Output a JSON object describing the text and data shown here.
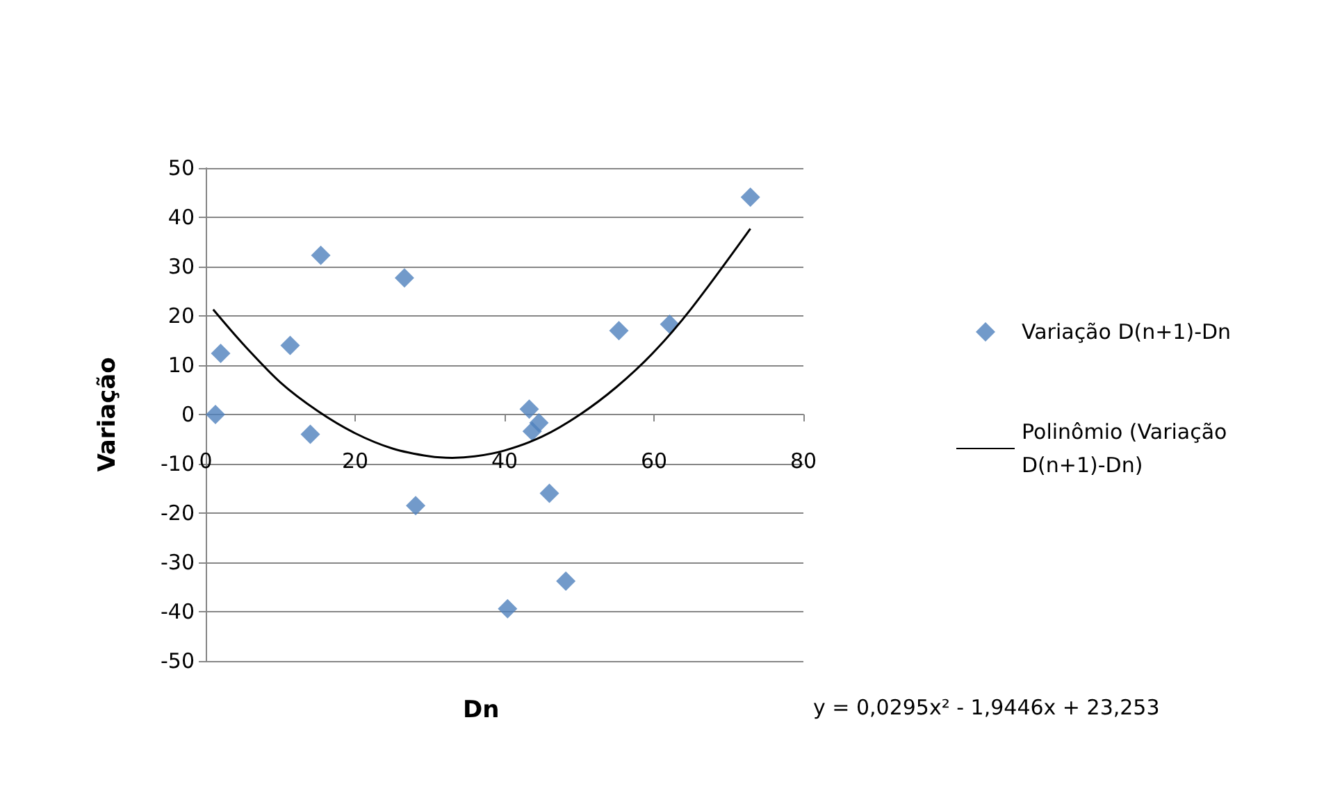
{
  "chart_data": {
    "type": "scatter",
    "xlabel": "Dn",
    "ylabel": "Variação",
    "series": [
      {
        "name": "Variação D(n+1)-Dn",
        "type": "scatter",
        "color": "#4f81bd",
        "marker": "diamond",
        "x": [
          1.3,
          2,
          11.3,
          14,
          15.4,
          26.6,
          28.1,
          40.4,
          43.3,
          43.7,
          44.6,
          46,
          48.2,
          55.3,
          62.1,
          72.9
        ],
        "values": [
          0,
          12.4,
          14,
          -4,
          32.3,
          27.7,
          -18.5,
          -39.4,
          1.1,
          -3.4,
          -1.7,
          -16,
          -33.8,
          17,
          18.3,
          44.1
        ]
      },
      {
        "name": "Polinômio (Variação D(n+1)-Dn)",
        "type": "line",
        "color": "#000000",
        "marker": "none",
        "x": [
          1,
          5,
          10,
          15,
          20,
          25,
          30,
          33,
          36,
          40,
          45,
          50,
          55,
          60,
          65,
          72.9
        ],
        "values": [
          21.3,
          14.3,
          6.5,
          0.7,
          -3.8,
          -6.9,
          -8.5,
          -8.8,
          -8.5,
          -7.3,
          -4.5,
          -0.1,
          5.6,
          12.7,
          21.5,
          37.7
        ]
      }
    ],
    "xlim": [
      0,
      80
    ],
    "xticks": [
      0,
      20,
      40,
      60,
      80
    ],
    "ylim": [
      -50,
      50
    ],
    "yticks": [
      -50,
      -40,
      -30,
      -20,
      -10,
      0,
      10,
      20,
      30,
      40,
      50
    ],
    "grid": "y",
    "legend": "right",
    "annotations": [
      "y = 0,0295x² - 1,9446x + 23,253"
    ]
  }
}
